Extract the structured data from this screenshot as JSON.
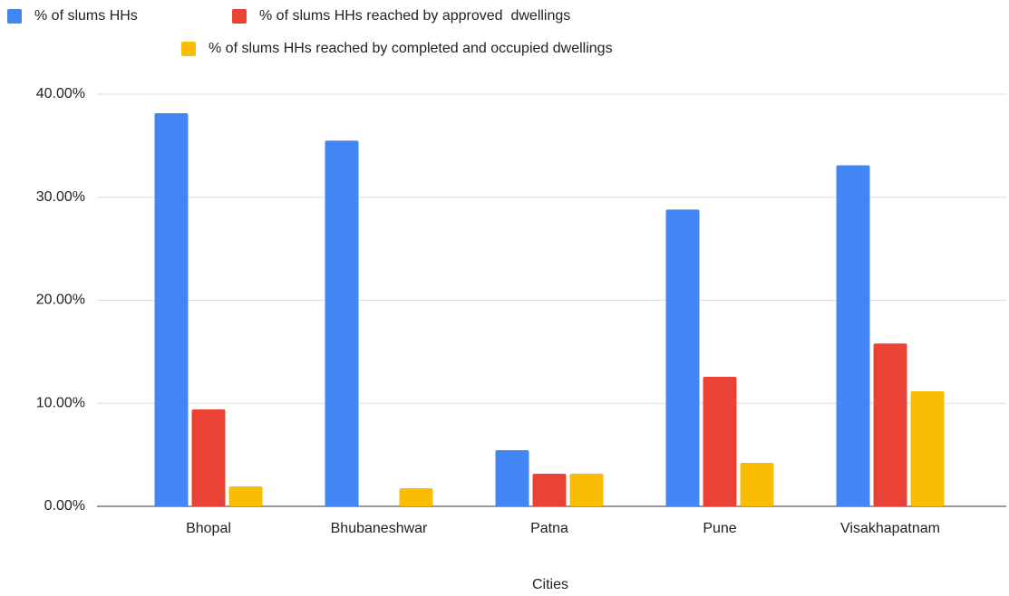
{
  "chart_data": {
    "type": "bar",
    "x_label": "Cities",
    "categories": [
      "Bhopal",
      "Bhubaneshwar",
      "Patna",
      "Pune",
      "Visakhapatnam"
    ],
    "series": [
      {
        "name": "% of slums HHs",
        "color": "#4285f4",
        "values": [
          38.15,
          35.5,
          5.45,
          28.8,
          33.1
        ]
      },
      {
        "name": "% of slums HHs reached by approved  dwellings",
        "color": "#ea4335",
        "values": [
          9.41,
          0,
          3.16,
          12.57,
          15.8
        ]
      },
      {
        "name": "% of slums HHs reached by completed and occupied dwellings",
        "color": "#fbbc04",
        "values": [
          1.93,
          1.76,
          3.16,
          4.22,
          11.16
        ]
      }
    ],
    "ylim": [
      0,
      40
    ],
    "yticks": [
      {
        "value": 0,
        "label": "0.00%"
      },
      {
        "value": 10,
        "label": "10.00%"
      },
      {
        "value": 20,
        "label": "20.00%"
      },
      {
        "value": 30,
        "label": "30.00%"
      },
      {
        "value": 40,
        "label": "40.00%"
      }
    ],
    "grid": true,
    "legend": "top"
  }
}
